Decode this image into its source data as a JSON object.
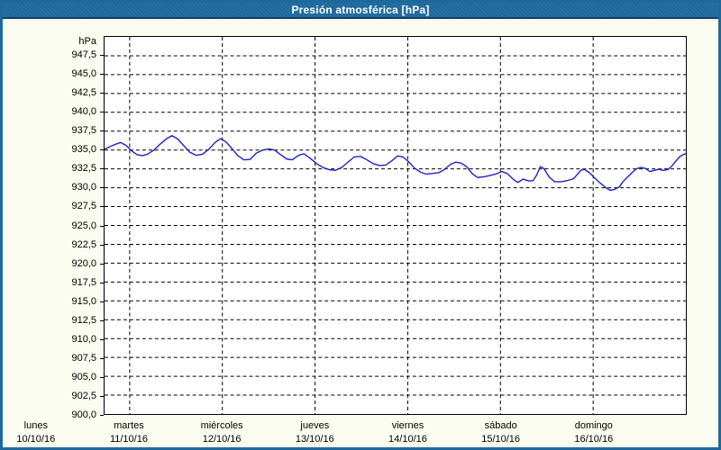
{
  "window": {
    "title": "Presión atmosférica [hPa]"
  },
  "colors": {
    "chrome_blue": "#1e699c",
    "chrome_dark": "#0c3c66",
    "page_background": "#fbfdf1",
    "plot_background": "#ffffff",
    "grid_color": "#000000",
    "line_color": "#2121c3",
    "title_text": "#ffffff",
    "axis_text": "#000000"
  },
  "chart_data": {
    "type": "line",
    "title": "Presión atmosférica [hPa]",
    "ylabel": "hPa",
    "xlabel": "",
    "ylim": [
      900,
      950
    ],
    "ytick_step": 2.5,
    "grid": true,
    "legend": null,
    "x_domain_days": [
      0.729,
      7.0
    ],
    "grid_day_lines": [
      1,
      2,
      3,
      4,
      5,
      6
    ],
    "yticks": [
      {
        "value": 947.5,
        "label": "947,5"
      },
      {
        "value": 945.0,
        "label": "945,0"
      },
      {
        "value": 942.5,
        "label": "942,5"
      },
      {
        "value": 940.0,
        "label": "940,0"
      },
      {
        "value": 937.5,
        "label": "937,5"
      },
      {
        "value": 935.0,
        "label": "935,0"
      },
      {
        "value": 932.5,
        "label": "932,5"
      },
      {
        "value": 930.0,
        "label": "930,0"
      },
      {
        "value": 927.5,
        "label": "927,5"
      },
      {
        "value": 925.0,
        "label": "925,0"
      },
      {
        "value": 922.5,
        "label": "922,5"
      },
      {
        "value": 920.0,
        "label": "920,0"
      },
      {
        "value": 917.5,
        "label": "917,5"
      },
      {
        "value": 915.0,
        "label": "915,0"
      },
      {
        "value": 912.5,
        "label": "912,5"
      },
      {
        "value": 910.0,
        "label": "910,0"
      },
      {
        "value": 907.5,
        "label": "907,5"
      },
      {
        "value": 905.0,
        "label": "905,0"
      },
      {
        "value": 902.5,
        "label": "902,5"
      },
      {
        "value": 900.0,
        "label": "900,0"
      }
    ],
    "xticks": [
      {
        "day_offset": 0,
        "day": "lunes",
        "date": "10/10/16"
      },
      {
        "day_offset": 1,
        "day": "martes",
        "date": "11/10/16"
      },
      {
        "day_offset": 2,
        "day": "miércoles",
        "date": "12/10/16"
      },
      {
        "day_offset": 3,
        "day": "jueves",
        "date": "13/10/16"
      },
      {
        "day_offset": 4,
        "day": "viernes",
        "date": "14/10/16"
      },
      {
        "day_offset": 5,
        "day": "sábado",
        "date": "15/10/16"
      },
      {
        "day_offset": 6,
        "day": "domingo",
        "date": "16/10/16"
      }
    ],
    "series": [
      {
        "name": "Presión atmosférica",
        "unit": "hPa",
        "points": [
          [
            0.729,
            935.1
          ],
          [
            0.787,
            935.45
          ],
          [
            0.855,
            935.8
          ],
          [
            0.903,
            936.0
          ],
          [
            0.962,
            935.6
          ],
          [
            1.02,
            934.9
          ],
          [
            1.078,
            934.4
          ],
          [
            1.136,
            934.25
          ],
          [
            1.194,
            934.45
          ],
          [
            1.262,
            935.0
          ],
          [
            1.33,
            935.8
          ],
          [
            1.398,
            936.5
          ],
          [
            1.456,
            936.9
          ],
          [
            1.514,
            936.5
          ],
          [
            1.582,
            935.6
          ],
          [
            1.65,
            934.7
          ],
          [
            1.718,
            934.3
          ],
          [
            1.785,
            934.45
          ],
          [
            1.853,
            935.1
          ],
          [
            1.921,
            936.0
          ],
          [
            1.979,
            936.5
          ],
          [
            2.037,
            936.1
          ],
          [
            2.096,
            935.3
          ],
          [
            2.163,
            934.3
          ],
          [
            2.231,
            933.7
          ],
          [
            2.299,
            933.75
          ],
          [
            2.367,
            934.6
          ],
          [
            2.435,
            935.0
          ],
          [
            2.503,
            935.15
          ],
          [
            2.561,
            935.0
          ],
          [
            2.629,
            934.4
          ],
          [
            2.697,
            933.8
          ],
          [
            2.755,
            933.7
          ],
          [
            2.823,
            934.3
          ],
          [
            2.881,
            934.5
          ],
          [
            2.949,
            933.9
          ],
          [
            3.016,
            933.2
          ],
          [
            3.084,
            932.7
          ],
          [
            3.152,
            932.4
          ],
          [
            3.22,
            932.3
          ],
          [
            3.288,
            932.7
          ],
          [
            3.356,
            933.4
          ],
          [
            3.424,
            934.1
          ],
          [
            3.491,
            934.15
          ],
          [
            3.559,
            933.7
          ],
          [
            3.627,
            933.2
          ],
          [
            3.695,
            932.95
          ],
          [
            3.763,
            933.0
          ],
          [
            3.831,
            933.6
          ],
          [
            3.889,
            934.2
          ],
          [
            3.947,
            934.1
          ],
          [
            4.005,
            933.5
          ],
          [
            4.073,
            932.6
          ],
          [
            4.141,
            932.05
          ],
          [
            4.199,
            931.8
          ],
          [
            4.267,
            931.9
          ],
          [
            4.335,
            932.0
          ],
          [
            4.393,
            932.4
          ],
          [
            4.461,
            933.1
          ],
          [
            4.519,
            933.4
          ],
          [
            4.577,
            933.25
          ],
          [
            4.635,
            932.8
          ],
          [
            4.693,
            931.9
          ],
          [
            4.752,
            931.35
          ],
          [
            4.82,
            931.45
          ],
          [
            4.878,
            931.6
          ],
          [
            4.946,
            931.8
          ],
          [
            5.013,
            932.15
          ],
          [
            5.072,
            931.9
          ],
          [
            5.139,
            931.1
          ],
          [
            5.188,
            930.7
          ],
          [
            5.246,
            931.15
          ],
          [
            5.304,
            930.9
          ],
          [
            5.352,
            930.95
          ],
          [
            5.391,
            931.7
          ],
          [
            5.43,
            932.8
          ],
          [
            5.469,
            932.55
          ],
          [
            5.527,
            931.4
          ],
          [
            5.585,
            930.8
          ],
          [
            5.653,
            930.8
          ],
          [
            5.721,
            930.95
          ],
          [
            5.789,
            931.2
          ],
          [
            5.866,
            932.3
          ],
          [
            5.905,
            932.45
          ],
          [
            5.953,
            932.05
          ],
          [
            5.992,
            931.6
          ],
          [
            6.04,
            931.0
          ],
          [
            6.089,
            930.5
          ],
          [
            6.137,
            930.0
          ],
          [
            6.186,
            929.65
          ],
          [
            6.234,
            929.8
          ],
          [
            6.282,
            930.1
          ],
          [
            6.321,
            930.8
          ],
          [
            6.37,
            931.4
          ],
          [
            6.418,
            932.0
          ],
          [
            6.466,
            932.5
          ],
          [
            6.515,
            932.7
          ],
          [
            6.563,
            932.55
          ],
          [
            6.612,
            932.15
          ],
          [
            6.66,
            932.3
          ],
          [
            6.709,
            932.45
          ],
          [
            6.757,
            932.3
          ],
          [
            6.805,
            932.4
          ],
          [
            6.844,
            932.8
          ],
          [
            6.883,
            933.4
          ],
          [
            6.932,
            934.1
          ],
          [
            6.97,
            934.4
          ],
          [
            6.999,
            934.5
          ]
        ]
      }
    ]
  }
}
